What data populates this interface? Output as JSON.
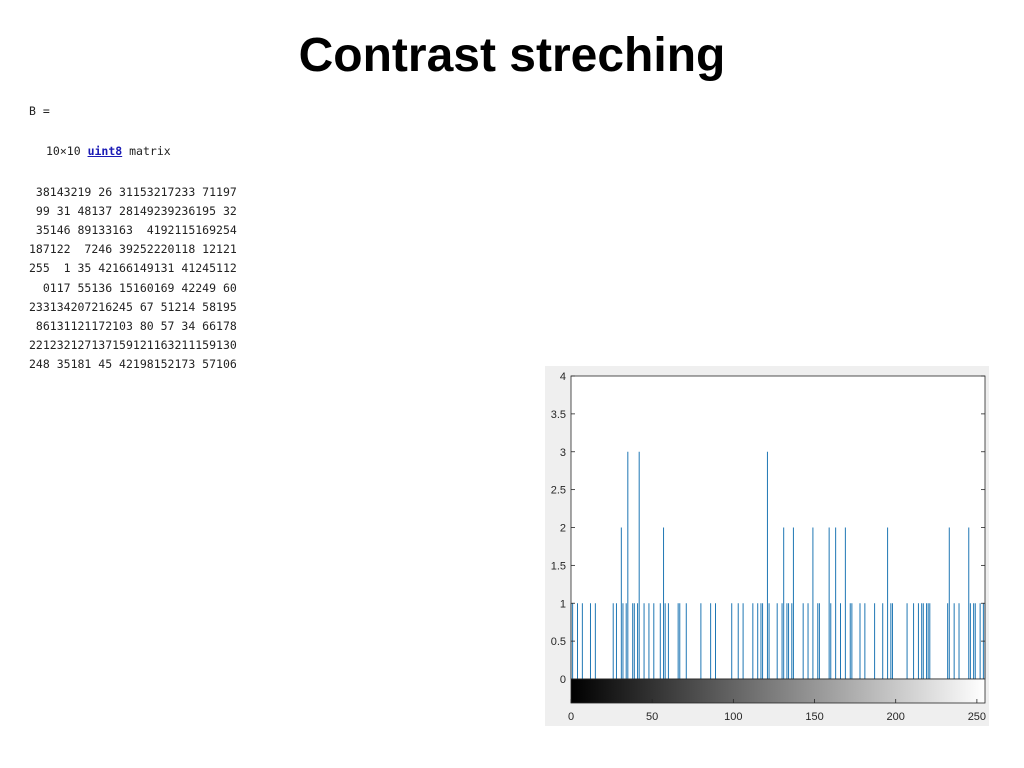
{
  "slide": {
    "title": "Contrast streching"
  },
  "console": {
    "variable_line": "B =",
    "dims_prefix": "10×10",
    "type_link": "uint8",
    "dims_suffix": "matrix",
    "matrix": [
      [
        38,
        143,
        219,
        26,
        31,
        153,
        217,
        233,
        71,
        197
      ],
      [
        99,
        31,
        48,
        137,
        28,
        149,
        239,
        236,
        195,
        32
      ],
      [
        35,
        146,
        89,
        133,
        163,
        4,
        192,
        115,
        169,
        254
      ],
      [
        187,
        122,
        7,
        246,
        39,
        252,
        220,
        118,
        12,
        121
      ],
      [
        255,
        1,
        35,
        42,
        166,
        149,
        131,
        41,
        245,
        112
      ],
      [
        0,
        117,
        55,
        136,
        15,
        160,
        169,
        42,
        249,
        60
      ],
      [
        233,
        134,
        207,
        216,
        245,
        67,
        51,
        214,
        58,
        195
      ],
      [
        86,
        131,
        121,
        172,
        103,
        80,
        57,
        34,
        66,
        178
      ],
      [
        221,
        232,
        127,
        137,
        159,
        121,
        163,
        211,
        159,
        130
      ],
      [
        248,
        35,
        181,
        45,
        42,
        198,
        152,
        173,
        57,
        106
      ]
    ]
  },
  "chart_data": {
    "type": "bar",
    "title": "",
    "xlabel": "",
    "ylabel": "",
    "xlim": [
      0,
      255
    ],
    "ylim": [
      0,
      4
    ],
    "x_ticks": [
      0,
      50,
      100,
      150,
      200,
      250
    ],
    "y_ticks": [
      0,
      0.5,
      1,
      1.5,
      2,
      2.5,
      3,
      3.5,
      4
    ],
    "grid": false,
    "colorbar": "grayscale 0-255",
    "series": [
      {
        "color": "#1f77b4",
        "bins": [
          0,
          1,
          4,
          7,
          12,
          15,
          26,
          28,
          31,
          32,
          34,
          35,
          38,
          39,
          41,
          42,
          45,
          48,
          51,
          55,
          57,
          58,
          60,
          66,
          67,
          71,
          80,
          86,
          89,
          99,
          103,
          106,
          112,
          115,
          117,
          118,
          121,
          122,
          127,
          130,
          131,
          133,
          134,
          136,
          137,
          143,
          146,
          149,
          152,
          153,
          159,
          160,
          163,
          166,
          169,
          172,
          173,
          178,
          181,
          187,
          192,
          195,
          197,
          198,
          207,
          211,
          214,
          216,
          217,
          219,
          220,
          221,
          232,
          233,
          236,
          239,
          245,
          246,
          248,
          249,
          252,
          254,
          255
        ],
        "counts": [
          1,
          1,
          1,
          1,
          1,
          1,
          1,
          1,
          2,
          1,
          1,
          3,
          1,
          1,
          1,
          3,
          1,
          1,
          1,
          1,
          2,
          1,
          1,
          1,
          1,
          1,
          1,
          1,
          1,
          1,
          1,
          1,
          1,
          1,
          1,
          1,
          3,
          1,
          1,
          1,
          2,
          1,
          1,
          1,
          2,
          1,
          1,
          2,
          1,
          1,
          2,
          1,
          2,
          1,
          2,
          1,
          1,
          1,
          1,
          1,
          1,
          2,
          1,
          1,
          1,
          1,
          1,
          1,
          1,
          1,
          1,
          1,
          1,
          2,
          1,
          1,
          2,
          1,
          1,
          1,
          1,
          1,
          1
        ]
      }
    ]
  }
}
